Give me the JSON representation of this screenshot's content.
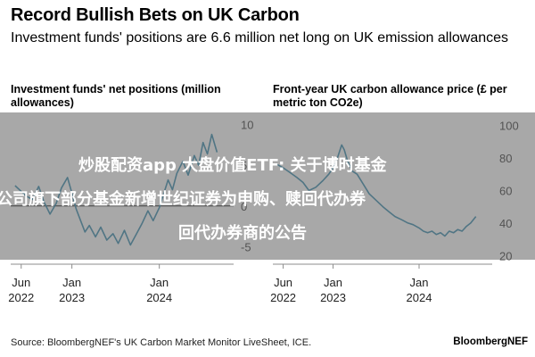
{
  "header": {
    "title": "Record Bullish Bets on UK Carbon",
    "subtitle": "Investment funds' positions are 6.6 million net long on UK emission allowances"
  },
  "overlay": {
    "line1": "炒股配资app 大盘价值ETF: 关于博时基金",
    "line2": "公司旗下部分基金新增世纪证券为申购、赎回代办券",
    "line3": "回代办券商的公告"
  },
  "footer": {
    "source": "Source: BloombergNEF's UK Carbon Market Monitor LiveSheet, ICE.",
    "brand": "BloombergNEF"
  },
  "colors": {
    "series": "#2f86a9",
    "axis": "#8c8c8c",
    "zero_line": "#000000",
    "overlay": "#696969"
  },
  "chart_data": [
    {
      "type": "line",
      "title": "Investment funds' net positions (million allowances)",
      "x_tick_labels": [
        {
          "line1": "Jun",
          "line2": "2022"
        },
        {
          "line1": "Jan",
          "line2": "2023"
        },
        {
          "line1": "Jan",
          "line2": "2024"
        }
      ],
      "x_ticks_at": [
        2022.42,
        2023.0,
        2024.0
      ],
      "y_ticks": [
        10,
        5,
        0,
        -5
      ],
      "y_tick_labels": [
        "10",
        "5",
        "0",
        "-5"
      ],
      "ylim": [
        -6.5,
        11.5
      ],
      "xlim": [
        2022.3,
        2024.85
      ],
      "grid": false,
      "series": [
        {
          "name": "Net positions",
          "x": [
            2022.35,
            2022.42,
            2022.48,
            2022.55,
            2022.62,
            2022.68,
            2022.75,
            2022.82,
            2022.88,
            2022.95,
            2023.0,
            2023.05,
            2023.1,
            2023.15,
            2023.2,
            2023.27,
            2023.33,
            2023.4,
            2023.47,
            2023.53,
            2023.6,
            2023.67,
            2023.73,
            2023.8,
            2023.87,
            2023.93,
            2024.0,
            2024.05,
            2024.1,
            2024.15,
            2024.2,
            2024.27,
            2024.33,
            2024.4,
            2024.45,
            2024.5,
            2024.55,
            2024.6,
            2024.66
          ],
          "values": [
            2.5,
            1.8,
            1.2,
            0.8,
            2.4,
            0.5,
            -1.0,
            0.3,
            2.2,
            3.5,
            1.6,
            -0.4,
            -1.8,
            -3.2,
            -2.4,
            -3.8,
            -2.6,
            -4.2,
            -3.4,
            -4.6,
            -3.0,
            -4.8,
            -3.6,
            -2.2,
            -0.6,
            -1.8,
            -0.2,
            1.5,
            3.2,
            2.0,
            4.0,
            5.5,
            3.8,
            6.2,
            5.0,
            7.8,
            6.4,
            8.8,
            6.6
          ]
        }
      ]
    },
    {
      "type": "line",
      "title": "Front-year UK carbon allowance price (£ per metric ton CO2e)",
      "x_tick_labels": [
        {
          "line1": "Jun",
          "line2": "2022"
        },
        {
          "line1": "Jan",
          "line2": "2023"
        },
        {
          "line1": "Jan",
          "line2": "2024"
        }
      ],
      "x_ticks_at": [
        2022.42,
        2023.0,
        2024.0
      ],
      "y_ticks": [
        100,
        80,
        60,
        40,
        20
      ],
      "y_tick_labels": [
        "100",
        "80",
        "60",
        "40",
        "20"
      ],
      "ylim": [
        18,
        108
      ],
      "xlim": [
        2022.3,
        2024.85
      ],
      "grid": false,
      "series": [
        {
          "name": "Front-year price",
          "x": [
            2022.35,
            2022.42,
            2022.5,
            2022.58,
            2022.65,
            2022.72,
            2022.8,
            2022.88,
            2022.95,
            2023.0,
            2023.05,
            2023.1,
            2023.13,
            2023.17,
            2023.22,
            2023.28,
            2023.35,
            2023.42,
            2023.5,
            2023.58,
            2023.65,
            2023.72,
            2023.8,
            2023.87,
            2023.93,
            2024.0,
            2024.05,
            2024.1,
            2024.15,
            2024.2,
            2024.25,
            2024.3,
            2024.35,
            2024.4,
            2024.45,
            2024.5,
            2024.55,
            2024.6,
            2024.66
          ],
          "values": [
            76,
            74,
            71,
            68,
            65,
            60,
            62,
            66,
            70,
            74,
            80,
            88,
            85,
            78,
            72,
            70,
            64,
            58,
            54,
            50,
            47,
            44,
            42,
            40,
            39,
            37,
            35,
            34,
            35,
            33,
            34,
            32,
            35,
            34,
            36,
            35,
            38,
            40,
            44
          ]
        }
      ]
    }
  ]
}
